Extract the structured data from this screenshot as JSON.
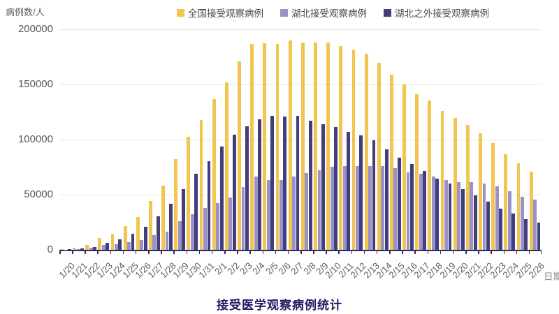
{
  "chart_data": {
    "type": "bar",
    "title": "接受医学观察病例统计",
    "xlabel": "日期",
    "ylabel": "病例数/人",
    "ylim": [
      0,
      200000
    ],
    "yticks": [
      0,
      50000,
      100000,
      150000,
      200000
    ],
    "grid": true,
    "legend_position": "top",
    "categories": [
      "1/20",
      "1/21",
      "1/22",
      "1/23",
      "1/24",
      "1/25",
      "1/26",
      "1/27",
      "1/28",
      "1/29",
      "1/30",
      "1/31",
      "2/1",
      "2/2",
      "2/3",
      "2/4",
      "2/5",
      "2/6",
      "2/7",
      "2/8",
      "2/9",
      "2/10",
      "2/11",
      "2/12",
      "2/13",
      "2/14",
      "2/15",
      "2/16",
      "2/17",
      "2/18",
      "2/19",
      "2/20",
      "2/21",
      "2/22",
      "2/23",
      "2/24",
      "2/25",
      "2/26"
    ],
    "series": [
      {
        "id": "national",
        "name": "全国接受观察病例",
        "color": "#F1C54F",
        "values": [
          800,
          1700,
          4600,
          10500,
          14500,
          21300,
          29600,
          44000,
          58500,
          82000,
          102500,
          117500,
          137000,
          152000,
          171000,
          186500,
          187500,
          187000,
          189700,
          188200,
          188000,
          188200,
          184800,
          181700,
          177700,
          169600,
          159000,
          150000,
          141000,
          135500,
          126000,
          119500,
          113000,
          106000,
          97000,
          87000,
          78500,
          71000
        ]
      },
      {
        "id": "hubei",
        "name": "湖北接受观察病例",
        "color": "#9992C9",
        "values": [
          300,
          700,
          2000,
          4200,
          5000,
          6800,
          8900,
          13500,
          16500,
          26000,
          32500,
          37800,
          42600,
          47500,
          57000,
          66500,
          63500,
          63100,
          66700,
          69400,
          72000,
          75300,
          76200,
          75800,
          76200,
          75800,
          74000,
          70000,
          68800,
          66300,
          63500,
          61600,
          61600,
          60300,
          57800,
          53200,
          48300,
          45500
        ]
      },
      {
        "id": "outside-hubei",
        "name": "湖北之外接受观察病例",
        "color": "#423D7D",
        "values": [
          500,
          1000,
          2600,
          6300,
          9500,
          14500,
          20700,
          30500,
          42000,
          55000,
          69000,
          80500,
          93500,
          104500,
          112000,
          118400,
          121700,
          121100,
          121300,
          117300,
          113700,
          111200,
          107000,
          103600,
          99600,
          91100,
          83600,
          78000,
          71500,
          64800,
          60000,
          55100,
          49400,
          43500,
          37200,
          32900,
          27900,
          24500
        ]
      }
    ]
  },
  "axis_colors": {
    "axis_line": "#2e2a6e",
    "tick_text": "#595959",
    "title_text": "#1c1a63"
  }
}
